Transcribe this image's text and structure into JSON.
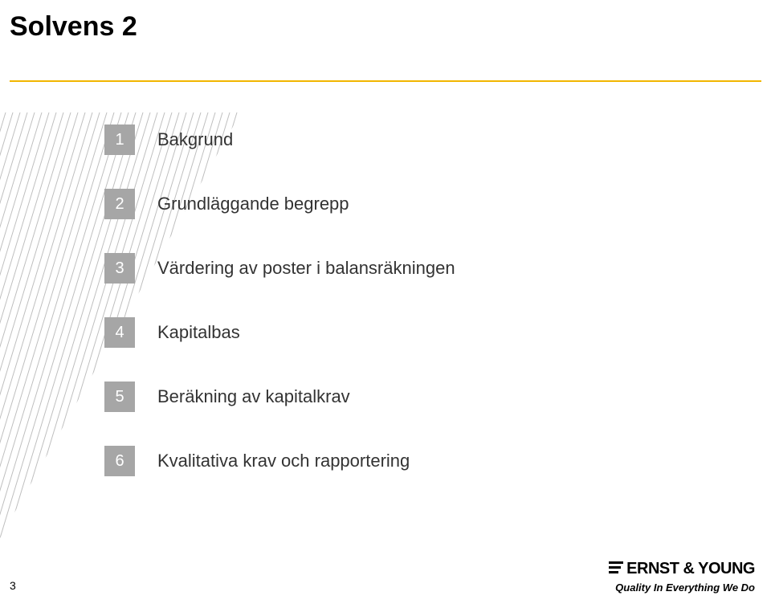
{
  "title": {
    "text": "Solvens 2",
    "fontsize": 34,
    "color": "#000000"
  },
  "accent_line_color": "#f2b600",
  "hatch": {
    "line_color": "#bfbfbf",
    "line_width": 1
  },
  "agenda": {
    "numbox": {
      "bg_color": "#a6a6a6",
      "text_color": "#ffffff",
      "fontsize": 20
    },
    "label_color": "#333333",
    "label_fontsize": 22,
    "items": [
      {
        "num": "1",
        "label": "Bakgrund"
      },
      {
        "num": "2",
        "label": "Grundläggande begrepp"
      },
      {
        "num": "3",
        "label": "Värdering av poster i balansräkningen"
      },
      {
        "num": "4",
        "label": "Kapitalbas"
      },
      {
        "num": "5",
        "label": "Beräkning av kapitalkrav"
      },
      {
        "num": "6",
        "label": "Kvalitativa krav och rapportering"
      }
    ]
  },
  "page_number": "3",
  "logo": {
    "name": "ERNST & YOUNG",
    "name_fontsize": 20,
    "tagline": "Quality In Everything We Do",
    "tagline_fontsize": 13
  }
}
